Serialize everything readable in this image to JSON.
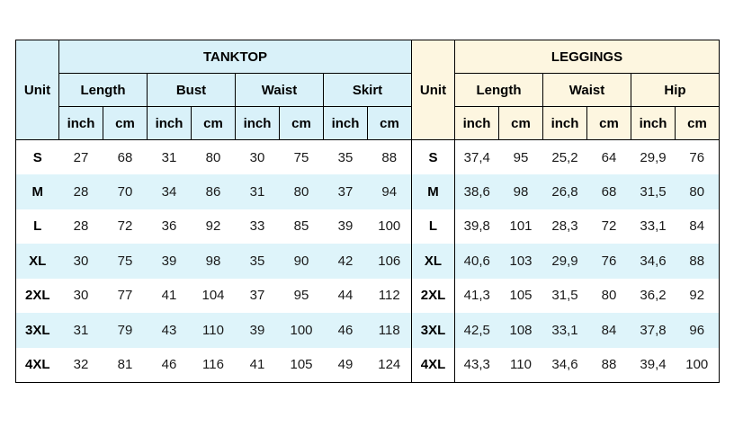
{
  "colors": {
    "page_bg": "#ffffff",
    "tanktop_header_bg": "#d9f1f9",
    "leggings_header_bg": "#fdf6e0",
    "stripe_bg": "#def4fa",
    "border": "#000000",
    "text": "#1a1a1a"
  },
  "chart_data": {
    "type": "table",
    "sizes": [
      "S",
      "M",
      "L",
      "XL",
      "2XL",
      "3XL",
      "4XL"
    ],
    "sections": [
      {
        "title": "TANKTOP",
        "unit_label": "Unit",
        "groups": [
          {
            "label": "Length",
            "subcols": [
              "inch",
              "cm"
            ]
          },
          {
            "label": "Bust",
            "subcols": [
              "inch",
              "cm"
            ]
          },
          {
            "label": "Waist",
            "subcols": [
              "inch",
              "cm"
            ]
          },
          {
            "label": "Skirt",
            "subcols": [
              "inch",
              "cm"
            ]
          }
        ],
        "rows": [
          [
            "27",
            "68",
            "31",
            "80",
            "30",
            "75",
            "35",
            "88"
          ],
          [
            "28",
            "70",
            "34",
            "86",
            "31",
            "80",
            "37",
            "94"
          ],
          [
            "28",
            "72",
            "36",
            "92",
            "33",
            "85",
            "39",
            "100"
          ],
          [
            "30",
            "75",
            "39",
            "98",
            "35",
            "90",
            "42",
            "106"
          ],
          [
            "30",
            "77",
            "41",
            "104",
            "37",
            "95",
            "44",
            "112"
          ],
          [
            "31",
            "79",
            "43",
            "110",
            "39",
            "100",
            "46",
            "118"
          ],
          [
            "32",
            "81",
            "46",
            "116",
            "41",
            "105",
            "49",
            "124"
          ]
        ]
      },
      {
        "title": "LEGGINGS",
        "unit_label": "Unit",
        "groups": [
          {
            "label": "Length",
            "subcols": [
              "inch",
              "cm"
            ]
          },
          {
            "label": "Waist",
            "subcols": [
              "inch",
              "cm"
            ]
          },
          {
            "label": "Hip",
            "subcols": [
              "inch",
              "cm"
            ]
          }
        ],
        "rows": [
          [
            "37,4",
            "95",
            "25,2",
            "64",
            "29,9",
            "76"
          ],
          [
            "38,6",
            "98",
            "26,8",
            "68",
            "31,5",
            "80"
          ],
          [
            "39,8",
            "101",
            "28,3",
            "72",
            "33,1",
            "84"
          ],
          [
            "40,6",
            "103",
            "29,9",
            "76",
            "34,6",
            "88"
          ],
          [
            "41,3",
            "105",
            "31,5",
            "80",
            "36,2",
            "92"
          ],
          [
            "42,5",
            "108",
            "33,1",
            "84",
            "37,8",
            "96"
          ],
          [
            "43,3",
            "110",
            "34,6",
            "88",
            "39,4",
            "100"
          ]
        ]
      }
    ]
  }
}
